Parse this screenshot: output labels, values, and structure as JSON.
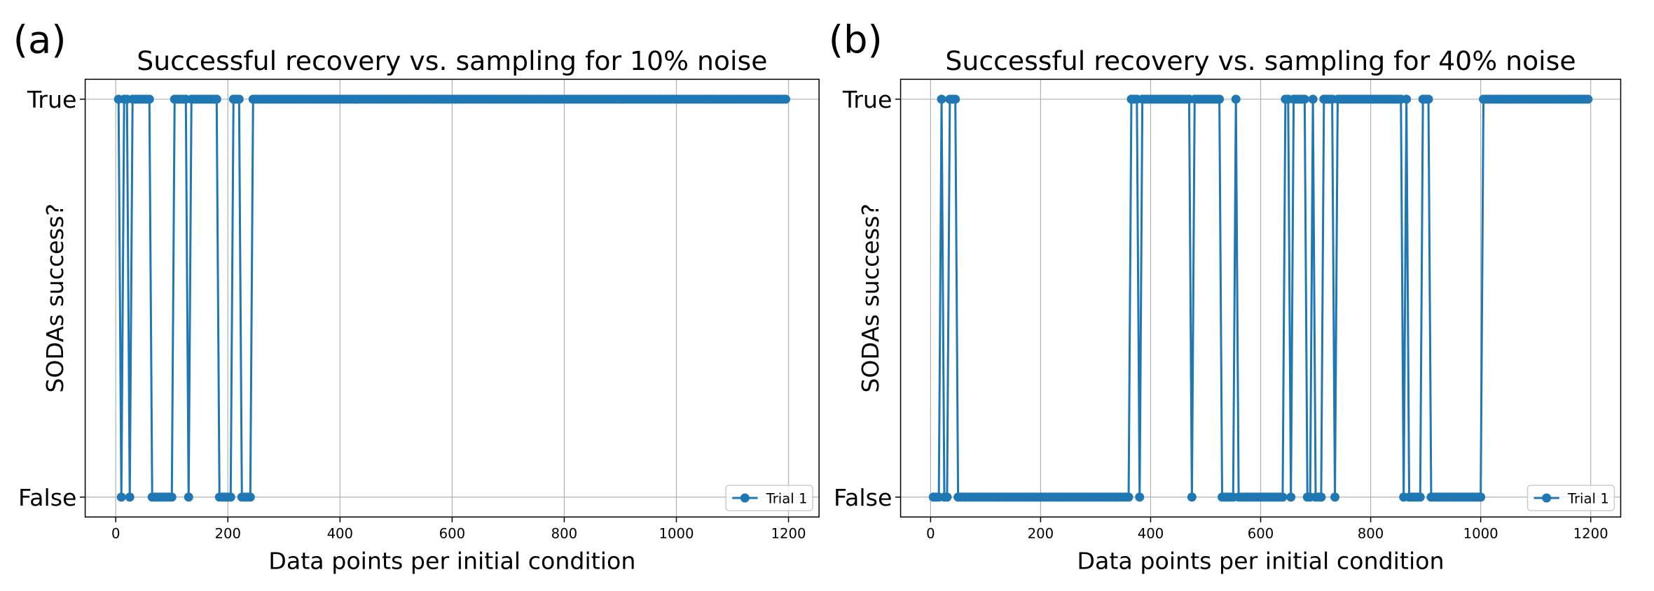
{
  "chart_data": [
    {
      "type": "line",
      "panel_label": "(a)",
      "title": "Successful recovery vs. sampling for 10% noise",
      "xlabel": "Data points per initial condition",
      "ylabel": "SODAs success?",
      "x": [
        5,
        10,
        15,
        20,
        25,
        30,
        35,
        40,
        45,
        50,
        55,
        60,
        65,
        70,
        75,
        80,
        85,
        90,
        95,
        100,
        105,
        110,
        115,
        120,
        125,
        130,
        135,
        140,
        145,
        150,
        155,
        160,
        165,
        170,
        175,
        180,
        185,
        190,
        195,
        200,
        205,
        210,
        215,
        220,
        225,
        230,
        235,
        240,
        245,
        250,
        255,
        260,
        265,
        270,
        275,
        280,
        285,
        290,
        295,
        300,
        305,
        310,
        315,
        320,
        325,
        330,
        335,
        340,
        345,
        350,
        355,
        360,
        365,
        370,
        375,
        380,
        385,
        390,
        395,
        400,
        405,
        410,
        415,
        420,
        425,
        430,
        435,
        440,
        445,
        450,
        455,
        460,
        465,
        470,
        475,
        480,
        485,
        490,
        495,
        500,
        505,
        510,
        515,
        520,
        525,
        530,
        535,
        540,
        545,
        550,
        555,
        560,
        565,
        570,
        575,
        580,
        585,
        590,
        595,
        600,
        605,
        610,
        615,
        620,
        625,
        630,
        635,
        640,
        645,
        650,
        655,
        660,
        665,
        670,
        675,
        680,
        685,
        690,
        695,
        700,
        705,
        710,
        715,
        720,
        725,
        730,
        735,
        740,
        745,
        750,
        755,
        760,
        765,
        770,
        775,
        780,
        785,
        790,
        795,
        800,
        805,
        810,
        815,
        820,
        825,
        830,
        835,
        840,
        845,
        850,
        855,
        860,
        865,
        870,
        875,
        880,
        885,
        890,
        895,
        900,
        905,
        910,
        915,
        920,
        925,
        930,
        935,
        940,
        945,
        950,
        955,
        960,
        965,
        970,
        975,
        980,
        985,
        990,
        995,
        1000,
        1005,
        1010,
        1015,
        1020,
        1025,
        1030,
        1035,
        1040,
        1045,
        1050,
        1055,
        1060,
        1065,
        1070,
        1075,
        1080,
        1085,
        1090,
        1095,
        1100,
        1105,
        1110,
        1115,
        1120,
        1125,
        1130,
        1135,
        1140,
        1145,
        1150,
        1155,
        1160,
        1165,
        1170,
        1175,
        1180,
        1185,
        1190,
        1195
      ],
      "series": [
        {
          "name": "Trial 1",
          "color": "#1f77b4",
          "values": [
            1,
            0,
            1,
            1,
            0,
            1,
            1,
            1,
            1,
            1,
            1,
            1,
            0,
            0,
            0,
            0,
            0,
            0,
            0,
            0,
            1,
            1,
            1,
            1,
            1,
            0,
            1,
            1,
            1,
            1,
            1,
            1,
            1,
            1,
            1,
            1,
            0,
            0,
            0,
            0,
            0,
            1,
            1,
            1,
            0,
            0,
            0,
            0,
            1,
            1,
            1,
            1,
            1,
            1,
            1,
            1,
            1,
            1,
            1,
            1,
            1,
            1,
            1,
            1,
            1,
            1,
            1,
            1,
            1,
            1,
            1,
            1,
            1,
            1,
            1,
            1,
            1,
            1,
            1,
            1,
            1,
            1,
            1,
            1,
            1,
            1,
            1,
            1,
            1,
            1,
            1,
            1,
            1,
            1,
            1,
            1,
            1,
            1,
            1,
            1,
            1,
            1,
            1,
            1,
            1,
            1,
            1,
            1,
            1,
            1,
            1,
            1,
            1,
            1,
            1,
            1,
            1,
            1,
            1,
            1,
            1,
            1,
            1,
            1,
            1,
            1,
            1,
            1,
            1,
            1,
            1,
            1,
            1,
            1,
            1,
            1,
            1,
            1,
            1,
            1,
            1,
            1,
            1,
            1,
            1,
            1,
            1,
            1,
            1,
            1,
            1,
            1,
            1,
            1,
            1,
            1,
            1,
            1,
            1,
            1,
            1,
            1,
            1,
            1,
            1,
            1,
            1,
            1,
            1,
            1,
            1,
            1,
            1,
            1,
            1,
            1,
            1,
            1,
            1,
            1,
            1,
            1,
            1,
            1,
            1,
            1,
            1,
            1,
            1,
            1,
            1,
            1,
            1,
            1,
            1,
            1,
            1,
            1,
            1,
            1,
            1,
            1,
            1,
            1,
            1,
            1,
            1,
            1,
            1,
            1,
            1,
            1,
            1,
            1,
            1,
            1,
            1,
            1,
            1,
            1,
            1,
            1,
            1,
            1,
            1,
            1,
            1,
            1,
            1,
            1,
            1,
            1,
            1,
            1,
            1,
            1,
            1,
            1,
            1
          ]
        }
      ],
      "xlim": [
        -54.5,
        1254.5
      ],
      "xticks": [
        0,
        200,
        400,
        600,
        800,
        1000,
        1200
      ],
      "ylim": [
        -0.05,
        1.05
      ],
      "yticks": [
        {
          "value": 0,
          "label": "False"
        },
        {
          "value": 1,
          "label": "True"
        }
      ],
      "grid": true,
      "legend": "lower right"
    },
    {
      "type": "line",
      "panel_label": "(b)",
      "title": "Successful recovery vs. sampling for 40% noise",
      "xlabel": "Data points per initial condition",
      "ylabel": "SODAs success?",
      "x": [
        5,
        10,
        15,
        20,
        25,
        30,
        35,
        40,
        45,
        50,
        55,
        60,
        65,
        70,
        75,
        80,
        85,
        90,
        95,
        100,
        105,
        110,
        115,
        120,
        125,
        130,
        135,
        140,
        145,
        150,
        155,
        160,
        165,
        170,
        175,
        180,
        185,
        190,
        195,
        200,
        205,
        210,
        215,
        220,
        225,
        230,
        235,
        240,
        245,
        250,
        255,
        260,
        265,
        270,
        275,
        280,
        285,
        290,
        295,
        300,
        305,
        310,
        315,
        320,
        325,
        330,
        335,
        340,
        345,
        350,
        355,
        360,
        365,
        370,
        375,
        380,
        385,
        390,
        395,
        400,
        405,
        410,
        415,
        420,
        425,
        430,
        435,
        440,
        445,
        450,
        455,
        460,
        465,
        470,
        475,
        480,
        485,
        490,
        495,
        500,
        505,
        510,
        515,
        520,
        525,
        530,
        535,
        540,
        545,
        550,
        555,
        560,
        565,
        570,
        575,
        580,
        585,
        590,
        595,
        600,
        605,
        610,
        615,
        620,
        625,
        630,
        635,
        640,
        645,
        650,
        655,
        660,
        665,
        670,
        675,
        680,
        685,
        690,
        695,
        700,
        705,
        710,
        715,
        720,
        725,
        730,
        735,
        740,
        745,
        750,
        755,
        760,
        765,
        770,
        775,
        780,
        785,
        790,
        795,
        800,
        805,
        810,
        815,
        820,
        825,
        830,
        835,
        840,
        845,
        850,
        855,
        860,
        865,
        870,
        875,
        880,
        885,
        890,
        895,
        900,
        905,
        910,
        915,
        920,
        925,
        930,
        935,
        940,
        945,
        950,
        955,
        960,
        965,
        970,
        975,
        980,
        985,
        990,
        995,
        1000,
        1005,
        1010,
        1015,
        1020,
        1025,
        1030,
        1035,
        1040,
        1045,
        1050,
        1055,
        1060,
        1065,
        1070,
        1075,
        1080,
        1085,
        1090,
        1095,
        1100,
        1105,
        1110,
        1115,
        1120,
        1125,
        1130,
        1135,
        1140,
        1145,
        1150,
        1155,
        1160,
        1165,
        1170,
        1175,
        1180,
        1185,
        1190,
        1195
      ],
      "series": [
        {
          "name": "Trial 1",
          "color": "#1f77b4",
          "values": [
            0,
            0,
            0,
            1,
            0,
            0,
            1,
            1,
            1,
            0,
            0,
            0,
            0,
            0,
            0,
            0,
            0,
            0,
            0,
            0,
            0,
            0,
            0,
            0,
            0,
            0,
            0,
            0,
            0,
            0,
            0,
            0,
            0,
            0,
            0,
            0,
            0,
            0,
            0,
            0,
            0,
            0,
            0,
            0,
            0,
            0,
            0,
            0,
            0,
            0,
            0,
            0,
            0,
            0,
            0,
            0,
            0,
            0,
            0,
            0,
            0,
            0,
            0,
            0,
            0,
            0,
            0,
            0,
            0,
            0,
            0,
            0,
            1,
            1,
            1,
            0,
            1,
            1,
            1,
            1,
            1,
            1,
            1,
            1,
            1,
            1,
            1,
            1,
            1,
            1,
            1,
            1,
            1,
            1,
            0,
            1,
            1,
            1,
            1,
            1,
            1,
            1,
            1,
            1,
            1,
            0,
            0,
            0,
            0,
            0,
            1,
            0,
            0,
            0,
            0,
            0,
            0,
            0,
            0,
            0,
            0,
            0,
            0,
            0,
            0,
            0,
            0,
            0,
            1,
            1,
            0,
            1,
            1,
            1,
            1,
            1,
            0,
            0,
            1,
            0,
            0,
            0,
            1,
            1,
            1,
            1,
            0,
            1,
            1,
            1,
            1,
            1,
            1,
            1,
            1,
            1,
            1,
            1,
            1,
            1,
            1,
            1,
            1,
            1,
            1,
            1,
            1,
            1,
            1,
            1,
            1,
            0,
            1,
            0,
            0,
            0,
            0,
            0,
            1,
            1,
            1,
            0,
            0,
            0,
            0,
            0,
            0,
            0,
            0,
            0,
            0,
            0,
            0,
            0,
            0,
            0,
            0,
            0,
            0,
            0,
            1,
            1,
            1,
            1,
            1,
            1,
            1,
            1,
            1,
            1,
            1,
            1,
            1,
            1,
            1,
            1,
            1,
            1,
            1,
            1,
            1,
            1,
            1,
            1,
            1,
            1,
            1,
            1,
            1,
            1,
            1,
            1,
            1,
            1,
            1,
            1,
            1,
            1,
            1
          ]
        }
      ],
      "xlim": [
        -54.5,
        1254.5
      ],
      "xticks": [
        0,
        200,
        400,
        600,
        800,
        1000,
        1200
      ],
      "ylim": [
        -0.05,
        1.05
      ],
      "yticks": [
        {
          "value": 0,
          "label": "False"
        },
        {
          "value": 1,
          "label": "True"
        }
      ],
      "grid": true,
      "legend": "lower right"
    }
  ]
}
